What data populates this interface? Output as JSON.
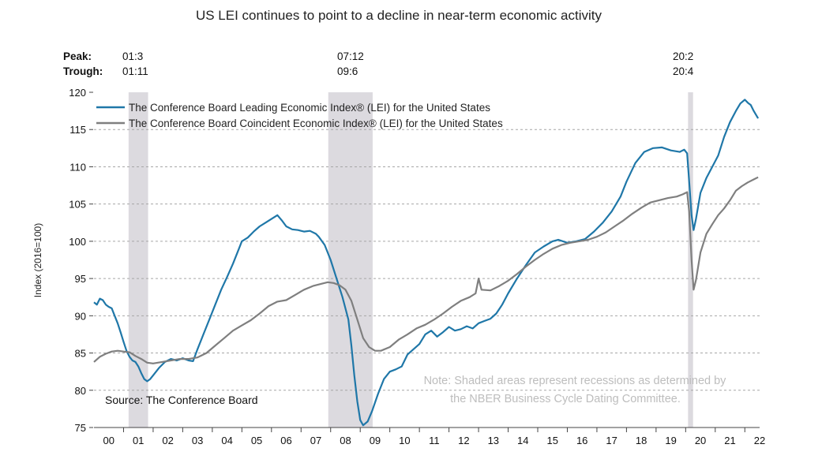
{
  "chart_data": {
    "type": "line",
    "title": "US LEI continues to point to a decline in near-term economic activity",
    "ylabel": "Index (2016=100)",
    "xlabel": "",
    "ylim": [
      75,
      120
    ],
    "yticks": [
      75,
      80,
      85,
      90,
      95,
      100,
      105,
      110,
      115,
      120
    ],
    "xlim": [
      2000,
      2022.5
    ],
    "x_tick_labels": [
      "00",
      "01",
      "02",
      "03",
      "04",
      "05",
      "06",
      "07",
      "08",
      "09",
      "10",
      "11",
      "12",
      "13",
      "14",
      "15",
      "16",
      "17",
      "18",
      "19",
      "20",
      "21",
      "22"
    ],
    "grid": "horizontal dashed",
    "legend_position": "top-left",
    "peak_trough": {
      "peak_label": "Peak:",
      "trough_label": "Trough:",
      "items": [
        {
          "peak": "01:3",
          "trough": "01:11"
        },
        {
          "peak": "07:12",
          "trough": "09:6"
        },
        {
          "peak": "20:2",
          "trough": "20:4"
        }
      ]
    },
    "recessions": [
      {
        "start": 2001.17,
        "end": 2001.83
      },
      {
        "start": 2007.92,
        "end": 2009.42
      },
      {
        "start": 2020.08,
        "end": 2020.25
      }
    ],
    "source": "Source: The Conference Board",
    "note_lines": [
      "Note: Shaded areas represent recessions as determined by",
      "the NBER Business Cycle Dating Committee."
    ],
    "series": [
      {
        "name": "The Conference Board Leading Economic Index® (LEI) for the United States",
        "color": "#1f77a8",
        "points": [
          [
            2000.0,
            91.8
          ],
          [
            2000.1,
            91.5
          ],
          [
            2000.2,
            92.3
          ],
          [
            2000.3,
            92.1
          ],
          [
            2000.4,
            91.5
          ],
          [
            2000.5,
            91.2
          ],
          [
            2000.6,
            91.0
          ],
          [
            2000.7,
            90.0
          ],
          [
            2000.8,
            89.0
          ],
          [
            2000.9,
            87.8
          ],
          [
            2001.0,
            86.5
          ],
          [
            2001.1,
            85.3
          ],
          [
            2001.2,
            84.5
          ],
          [
            2001.3,
            84.0
          ],
          [
            2001.4,
            83.8
          ],
          [
            2001.5,
            83.2
          ],
          [
            2001.6,
            82.3
          ],
          [
            2001.7,
            81.5
          ],
          [
            2001.8,
            81.2
          ],
          [
            2001.9,
            81.5
          ],
          [
            2002.0,
            82.0
          ],
          [
            2002.2,
            83.0
          ],
          [
            2002.4,
            83.8
          ],
          [
            2002.6,
            84.2
          ],
          [
            2002.8,
            84.0
          ],
          [
            2003.0,
            84.3
          ],
          [
            2003.2,
            84.0
          ],
          [
            2003.35,
            83.9
          ],
          [
            2003.5,
            85.5
          ],
          [
            2003.7,
            87.5
          ],
          [
            2003.9,
            89.5
          ],
          [
            2004.1,
            91.5
          ],
          [
            2004.3,
            93.5
          ],
          [
            2004.5,
            95.2
          ],
          [
            2004.7,
            97.0
          ],
          [
            2004.9,
            99.0
          ],
          [
            2005.0,
            100.0
          ],
          [
            2005.2,
            100.5
          ],
          [
            2005.4,
            101.3
          ],
          [
            2005.6,
            102.0
          ],
          [
            2005.8,
            102.5
          ],
          [
            2006.0,
            103.0
          ],
          [
            2006.2,
            103.5
          ],
          [
            2006.35,
            102.8
          ],
          [
            2006.5,
            102.0
          ],
          [
            2006.7,
            101.6
          ],
          [
            2006.9,
            101.5
          ],
          [
            2007.1,
            101.3
          ],
          [
            2007.3,
            101.4
          ],
          [
            2007.5,
            101.0
          ],
          [
            2007.6,
            100.6
          ],
          [
            2007.8,
            99.5
          ],
          [
            2008.0,
            97.5
          ],
          [
            2008.2,
            95.0
          ],
          [
            2008.4,
            92.5
          ],
          [
            2008.6,
            89.5
          ],
          [
            2008.7,
            86.0
          ],
          [
            2008.8,
            82.0
          ],
          [
            2008.9,
            78.5
          ],
          [
            2009.0,
            76.0
          ],
          [
            2009.1,
            75.3
          ],
          [
            2009.25,
            75.8
          ],
          [
            2009.4,
            77.2
          ],
          [
            2009.6,
            79.5
          ],
          [
            2009.8,
            81.5
          ],
          [
            2010.0,
            82.5
          ],
          [
            2010.2,
            82.8
          ],
          [
            2010.4,
            83.2
          ],
          [
            2010.6,
            84.8
          ],
          [
            2010.8,
            85.5
          ],
          [
            2011.0,
            86.2
          ],
          [
            2011.2,
            87.5
          ],
          [
            2011.4,
            88.0
          ],
          [
            2011.6,
            87.2
          ],
          [
            2011.8,
            87.8
          ],
          [
            2012.0,
            88.5
          ],
          [
            2012.2,
            88.0
          ],
          [
            2012.4,
            88.2
          ],
          [
            2012.6,
            88.6
          ],
          [
            2012.8,
            88.3
          ],
          [
            2013.0,
            89.0
          ],
          [
            2013.2,
            89.3
          ],
          [
            2013.4,
            89.6
          ],
          [
            2013.6,
            90.3
          ],
          [
            2013.8,
            91.5
          ],
          [
            2014.0,
            93.0
          ],
          [
            2014.3,
            95.0
          ],
          [
            2014.6,
            96.8
          ],
          [
            2014.9,
            98.5
          ],
          [
            2015.2,
            99.3
          ],
          [
            2015.5,
            100.0
          ],
          [
            2015.7,
            100.2
          ],
          [
            2016.0,
            99.8
          ],
          [
            2016.3,
            100.0
          ],
          [
            2016.6,
            100.3
          ],
          [
            2016.9,
            101.3
          ],
          [
            2017.2,
            102.5
          ],
          [
            2017.5,
            104.0
          ],
          [
            2017.8,
            106.0
          ],
          [
            2018.0,
            108.0
          ],
          [
            2018.3,
            110.5
          ],
          [
            2018.6,
            112.0
          ],
          [
            2018.9,
            112.5
          ],
          [
            2019.2,
            112.6
          ],
          [
            2019.5,
            112.2
          ],
          [
            2019.8,
            112.0
          ],
          [
            2019.95,
            112.3
          ],
          [
            2020.05,
            111.8
          ],
          [
            2020.12,
            108.0
          ],
          [
            2020.2,
            103.5
          ],
          [
            2020.27,
            101.5
          ],
          [
            2020.35,
            103.0
          ],
          [
            2020.5,
            106.5
          ],
          [
            2020.7,
            108.5
          ],
          [
            2020.9,
            110.0
          ],
          [
            2021.1,
            111.5
          ],
          [
            2021.3,
            114.0
          ],
          [
            2021.5,
            116.0
          ],
          [
            2021.7,
            117.5
          ],
          [
            2021.85,
            118.5
          ],
          [
            2022.0,
            119.0
          ],
          [
            2022.1,
            118.6
          ],
          [
            2022.2,
            118.3
          ],
          [
            2022.3,
            117.5
          ],
          [
            2022.45,
            116.5
          ]
        ]
      },
      {
        "name": "The Conference Board Coincident Economic Index® (LEI) for the United States",
        "color": "#7f7f7f",
        "points": [
          [
            2000.0,
            83.8
          ],
          [
            2000.2,
            84.5
          ],
          [
            2000.4,
            84.9
          ],
          [
            2000.6,
            85.2
          ],
          [
            2000.8,
            85.3
          ],
          [
            2001.0,
            85.2
          ],
          [
            2001.2,
            85.1
          ],
          [
            2001.4,
            84.6
          ],
          [
            2001.6,
            84.2
          ],
          [
            2001.8,
            83.7
          ],
          [
            2002.0,
            83.6
          ],
          [
            2002.3,
            83.8
          ],
          [
            2002.6,
            84.0
          ],
          [
            2002.9,
            84.2
          ],
          [
            2003.2,
            84.2
          ],
          [
            2003.5,
            84.4
          ],
          [
            2003.8,
            85.0
          ],
          [
            2004.1,
            86.0
          ],
          [
            2004.4,
            87.0
          ],
          [
            2004.7,
            88.0
          ],
          [
            2005.0,
            88.7
          ],
          [
            2005.3,
            89.4
          ],
          [
            2005.6,
            90.3
          ],
          [
            2005.9,
            91.3
          ],
          [
            2006.2,
            91.9
          ],
          [
            2006.5,
            92.1
          ],
          [
            2006.8,
            92.8
          ],
          [
            2007.1,
            93.5
          ],
          [
            2007.4,
            94.0
          ],
          [
            2007.7,
            94.3
          ],
          [
            2007.9,
            94.5
          ],
          [
            2008.1,
            94.4
          ],
          [
            2008.3,
            94.1
          ],
          [
            2008.5,
            93.5
          ],
          [
            2008.7,
            92.0
          ],
          [
            2008.9,
            89.5
          ],
          [
            2009.1,
            87.0
          ],
          [
            2009.3,
            85.8
          ],
          [
            2009.5,
            85.3
          ],
          [
            2009.7,
            85.3
          ],
          [
            2010.0,
            85.8
          ],
          [
            2010.3,
            86.8
          ],
          [
            2010.6,
            87.5
          ],
          [
            2010.9,
            88.3
          ],
          [
            2011.2,
            88.8
          ],
          [
            2011.5,
            89.5
          ],
          [
            2011.8,
            90.3
          ],
          [
            2012.1,
            91.2
          ],
          [
            2012.4,
            92.0
          ],
          [
            2012.7,
            92.5
          ],
          [
            2012.9,
            93.0
          ],
          [
            2013.0,
            95.0
          ],
          [
            2013.1,
            93.5
          ],
          [
            2013.4,
            93.4
          ],
          [
            2013.7,
            94.0
          ],
          [
            2014.0,
            94.7
          ],
          [
            2014.3,
            95.6
          ],
          [
            2014.6,
            96.6
          ],
          [
            2014.9,
            97.5
          ],
          [
            2015.2,
            98.3
          ],
          [
            2015.5,
            99.0
          ],
          [
            2015.8,
            99.5
          ],
          [
            2016.1,
            99.8
          ],
          [
            2016.4,
            100.0
          ],
          [
            2016.7,
            100.2
          ],
          [
            2017.0,
            100.6
          ],
          [
            2017.3,
            101.2
          ],
          [
            2017.6,
            102.0
          ],
          [
            2017.9,
            102.8
          ],
          [
            2018.2,
            103.7
          ],
          [
            2018.5,
            104.5
          ],
          [
            2018.8,
            105.2
          ],
          [
            2019.1,
            105.5
          ],
          [
            2019.4,
            105.8
          ],
          [
            2019.7,
            106.0
          ],
          [
            2019.9,
            106.3
          ],
          [
            2020.05,
            106.6
          ],
          [
            2020.12,
            104.0
          ],
          [
            2020.2,
            97.5
          ],
          [
            2020.27,
            93.5
          ],
          [
            2020.35,
            94.8
          ],
          [
            2020.5,
            98.5
          ],
          [
            2020.7,
            101.0
          ],
          [
            2020.9,
            102.3
          ],
          [
            2021.1,
            103.5
          ],
          [
            2021.3,
            104.4
          ],
          [
            2021.5,
            105.5
          ],
          [
            2021.7,
            106.8
          ],
          [
            2021.9,
            107.4
          ],
          [
            2022.1,
            107.9
          ],
          [
            2022.3,
            108.3
          ],
          [
            2022.45,
            108.6
          ]
        ]
      }
    ]
  }
}
